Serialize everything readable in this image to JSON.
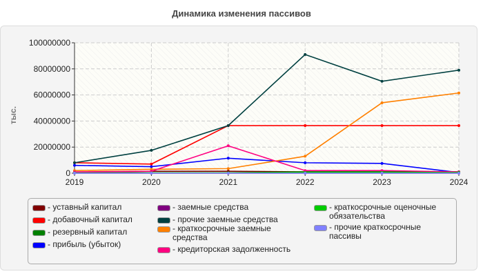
{
  "chart_data": {
    "type": "line",
    "title": "Динамика изменения пассивов",
    "ylabel": "тыс.",
    "xlabel": "",
    "x": [
      2019,
      2020,
      2021,
      2022,
      2023,
      2024
    ],
    "ylim": [
      0,
      100000000
    ],
    "yticks": [
      "0",
      "20000000",
      "40000000",
      "60000000",
      "80000000",
      "100000000"
    ],
    "grid": true,
    "legend_placement": "bottom",
    "series": [
      {
        "name": "уставный капитал",
        "color": "#800000",
        "values": [
          500000,
          1500000,
          1500000,
          1000000,
          1000000,
          1000000
        ]
      },
      {
        "name": "добавочный капитал",
        "color": "#ff0000",
        "values": [
          8000000,
          7000000,
          36500000,
          36500000,
          36500000,
          36500000
        ]
      },
      {
        "name": "резервный капитал",
        "color": "#008000",
        "values": [
          300000,
          300000,
          300000,
          1000000,
          1000000,
          1000000
        ]
      },
      {
        "name": "прибыль (убыток)",
        "color": "#0000ff",
        "values": [
          6000000,
          5000000,
          11500000,
          8000000,
          7500000,
          500000
        ]
      },
      {
        "name": "заемные средства",
        "color": "#800080",
        "values": [
          0,
          0,
          0,
          0,
          0,
          0
        ]
      },
      {
        "name": "прочие заемные средства",
        "color": "#004040",
        "values": [
          8000000,
          17500000,
          36500000,
          91000000,
          70500000,
          79000000
        ]
      },
      {
        "name": "краткосрочные заемные средства",
        "color": "#ff8000",
        "values": [
          2000000,
          3000000,
          3500000,
          13000000,
          54000000,
          61500000
        ]
      },
      {
        "name": "кредиторская задолженность",
        "color": "#ff0080",
        "values": [
          1000000,
          1500000,
          21000000,
          2000000,
          2000000,
          1000000
        ]
      },
      {
        "name": "краткосрочные оценочные обязательства",
        "color": "#00cc00",
        "values": [
          200000,
          200000,
          200000,
          500000,
          500000,
          500000
        ]
      },
      {
        "name": "прочие краткосрочные пассивы",
        "color": "#8080ff",
        "values": [
          0,
          0,
          0,
          0,
          0,
          0
        ]
      }
    ]
  }
}
